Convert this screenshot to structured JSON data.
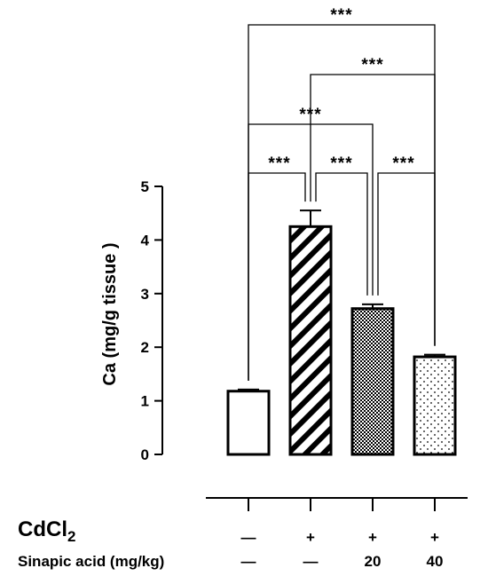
{
  "chart_data": {
    "type": "bar",
    "ylabel": "Ca (mg/g tissue )",
    "ylim": [
      0,
      5
    ],
    "yticks": [
      "0",
      "1",
      "2",
      "3",
      "4",
      "5"
    ],
    "groups": [
      {
        "value": 1.18,
        "error": 0.03,
        "pattern": "open"
      },
      {
        "value": 4.25,
        "error": 0.3,
        "pattern": "hatch"
      },
      {
        "value": 2.72,
        "error": 0.08,
        "pattern": "checker"
      },
      {
        "value": 1.82,
        "error": 0.04,
        "pattern": "dots"
      }
    ],
    "conditions": [
      {
        "label": "CdCl",
        "label_sub": "2",
        "values": [
          "—",
          "+",
          "+",
          "+"
        ]
      },
      {
        "label": "Sinapic acid (mg/kg)",
        "values": [
          "—",
          "—",
          "20",
          "40"
        ]
      }
    ],
    "comparisons": [
      {
        "from": 0,
        "to": 1,
        "label": "***",
        "level": 0
      },
      {
        "from": 1,
        "to": 2,
        "label": "***",
        "level": 0
      },
      {
        "from": 2,
        "to": 3,
        "label": "***",
        "level": 0
      },
      {
        "from": 0,
        "to": 2,
        "label": "***",
        "level": 1
      },
      {
        "from": 1,
        "to": 3,
        "label": "***",
        "level": 2
      },
      {
        "from": 0,
        "to": 3,
        "label": "***",
        "level": 3
      }
    ],
    "colors": {
      "ink": "#000000",
      "fill": "#ffffff"
    }
  }
}
